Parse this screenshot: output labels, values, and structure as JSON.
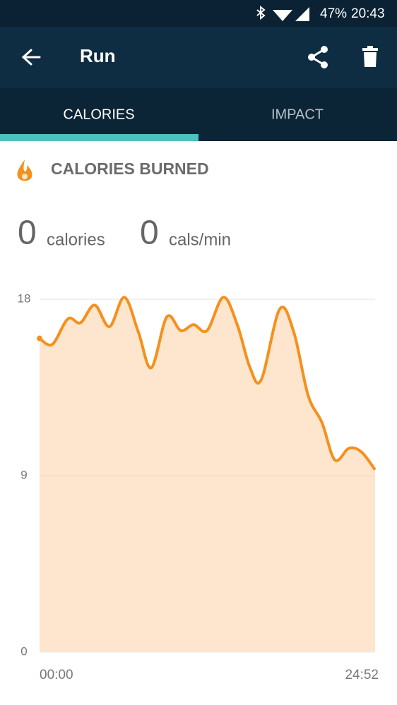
{
  "status_bar": {
    "battery": "47%",
    "time": "20:43"
  },
  "app_bar": {
    "title": "Run"
  },
  "tabs": [
    "CALORIES",
    "IMPACT"
  ],
  "section": {
    "title": "CALORIES BURNED"
  },
  "stats": [
    {
      "value": 0,
      "unit": "calories"
    },
    {
      "value": 0,
      "unit": "cals/min"
    }
  ],
  "chart_data": {
    "type": "line",
    "x": [
      0,
      57,
      126,
      182,
      245,
      311,
      377,
      440,
      497,
      566,
      628,
      685,
      745,
      817,
      879,
      936,
      986,
      1068,
      1131,
      1194,
      1256,
      1313,
      1376,
      1432,
      1492
    ],
    "values": [
      16.0,
      15.7,
      17.0,
      16.8,
      17.7,
      16.6,
      18.1,
      16.3,
      14.5,
      17.1,
      16.4,
      16.7,
      16.4,
      18.1,
      16.7,
      14.5,
      13.9,
      17.5,
      16.3,
      13.1,
      11.7,
      9.8,
      10.4,
      10.2,
      9.3
    ],
    "xlim": [
      0,
      1492
    ],
    "xticks": [
      {
        "value": 0,
        "label": "00:00"
      },
      {
        "value": 1492,
        "label": "24:52"
      }
    ],
    "ylim": [
      0,
      18
    ],
    "yticks": [
      0,
      9,
      18
    ],
    "grid": true,
    "color": "#f5901e",
    "fill": "#fde6cd"
  }
}
